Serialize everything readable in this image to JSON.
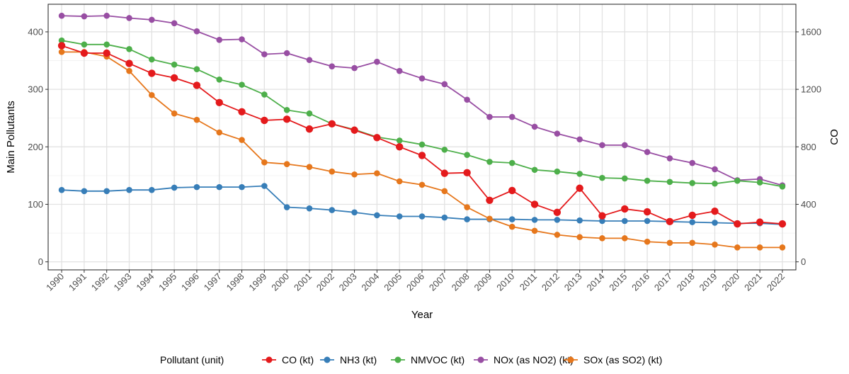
{
  "chart_data": {
    "type": "line",
    "xlabel": "Year",
    "ylabel_left": "Main Pollutants",
    "ylabel_right": "CO",
    "x": [
      1990,
      1991,
      1992,
      1993,
      1994,
      1995,
      1996,
      1997,
      1998,
      1999,
      2000,
      2001,
      2002,
      2003,
      2004,
      2005,
      2006,
      2007,
      2008,
      2009,
      2010,
      2011,
      2012,
      2013,
      2014,
      2015,
      2016,
      2017,
      2018,
      2019,
      2020,
      2021,
      2022
    ],
    "x_tick_labels": [
      "1990",
      "1991",
      "1992",
      "1993",
      "1994",
      "1995",
      "1996",
      "1997",
      "1998",
      "1999",
      "2000",
      "2001",
      "2002",
      "2003",
      "2004",
      "2005",
      "2006",
      "2007",
      "2008",
      "2009",
      "2010",
      "2011",
      "2012",
      "2013",
      "2014",
      "2015",
      "2016",
      "2017",
      "2018",
      "2019",
      "2020",
      "2021",
      "2022"
    ],
    "ylim_left": [
      -14,
      448
    ],
    "yticks_left": [
      0,
      100,
      200,
      300,
      400
    ],
    "yticks_left_labels": [
      "0",
      "100",
      "200",
      "300",
      "400"
    ],
    "ylim_right": [
      -56,
      1792
    ],
    "yticks_right": [
      0,
      400,
      800,
      1200,
      1600
    ],
    "yticks_right_labels": [
      "0",
      "400",
      "800",
      "1200",
      "1600"
    ],
    "grid": true,
    "legend_position": "bottom",
    "legend_title": "Pollutant (unit)",
    "series": [
      {
        "name": "CO (kt)",
        "color": "#e41a1c",
        "axis": "right",
        "values": [
          1504,
          1452,
          1452,
          1380,
          1312,
          1280,
          1228,
          1108,
          1044,
          984,
          992,
          924,
          960,
          916,
          864,
          800,
          740,
          616,
          620,
          428,
          496,
          400,
          344,
          512,
          320,
          368,
          348,
          280,
          324,
          352,
          264,
          276,
          264
        ]
      },
      {
        "name": "NH3 (kt)",
        "color": "#377eb8",
        "axis": "left",
        "values": [
          125,
          123,
          123,
          125,
          125,
          129,
          130,
          130,
          130,
          132,
          95,
          93,
          90,
          86,
          81,
          79,
          79,
          77,
          74,
          74,
          74,
          73,
          73,
          72,
          71,
          71,
          71,
          70,
          69,
          68,
          67,
          67,
          65
        ]
      },
      {
        "name": "NMVOC (kt)",
        "color": "#4daf4a",
        "axis": "left",
        "values": [
          385,
          378,
          378,
          370,
          352,
          343,
          335,
          317,
          308,
          291,
          264,
          258,
          240,
          230,
          217,
          211,
          204,
          195,
          186,
          174,
          172,
          160,
          157,
          153,
          146,
          145,
          141,
          139,
          137,
          136,
          141,
          138,
          131
        ]
      },
      {
        "name": "NOx (as NO2) (kt)",
        "color": "#984ea3",
        "axis": "left",
        "values": [
          428,
          427,
          428,
          424,
          421,
          415,
          401,
          386,
          387,
          361,
          363,
          351,
          340,
          337,
          348,
          332,
          319,
          309,
          282,
          252,
          252,
          235,
          223,
          213,
          203,
          203,
          191,
          180,
          172,
          161,
          142,
          144,
          133
        ]
      },
      {
        "name": "SOx  (as SO2) (kt)",
        "color": "#e6771c",
        "axis": "left",
        "values": [
          365,
          365,
          357,
          332,
          290,
          258,
          247,
          225,
          212,
          173,
          170,
          165,
          157,
          152,
          154,
          140,
          134,
          123,
          95,
          75,
          61,
          54,
          47,
          43,
          41,
          41,
          35,
          33,
          33,
          30,
          25,
          25,
          25
        ]
      }
    ]
  }
}
